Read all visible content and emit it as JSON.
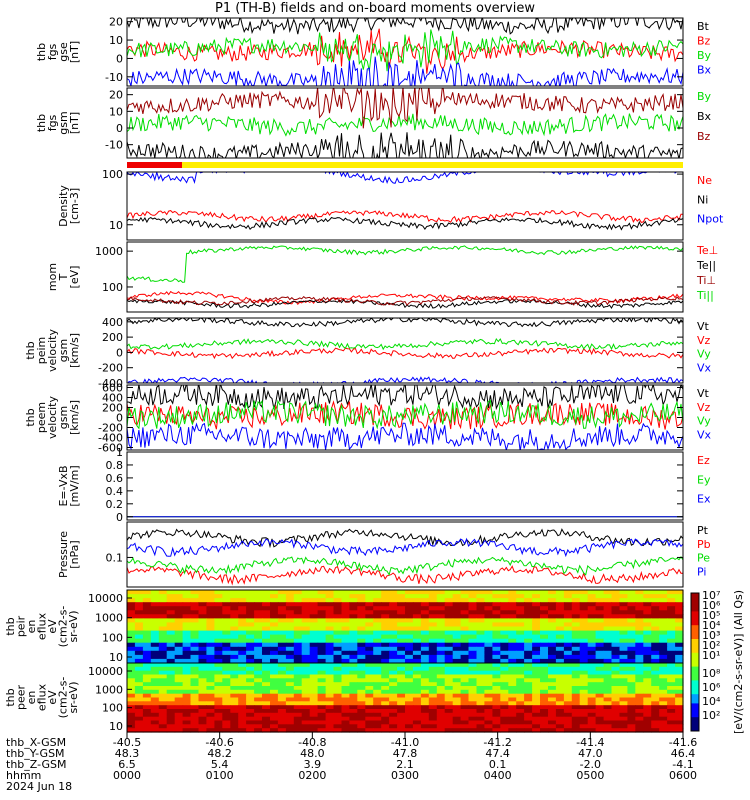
{
  "title": "P1 (TH-B) fields and on-board moments overview",
  "chart_data": {
    "type": "line",
    "panels": [
      {
        "id": "fgs-gse",
        "ylabel": [
          "thb",
          "fgs",
          "gse",
          "[nT]"
        ],
        "ylim": [
          -15,
          22
        ],
        "yticks": [
          20,
          10,
          0,
          -10
        ],
        "series": [
          {
            "name": "Bt",
            "color": "#000000",
            "base": 19
          },
          {
            "name": "Bz",
            "color": "#ff0000",
            "base": 4
          },
          {
            "name": "By",
            "color": "#00dd00",
            "base": 6
          },
          {
            "name": "Bx",
            "color": "#0000ff",
            "base": -11
          }
        ]
      },
      {
        "id": "fgs-gsm",
        "ylabel": [
          "thb",
          "fgs",
          "gsm",
          "[nT]"
        ],
        "ylim": [
          -18,
          24
        ],
        "yticks": [
          20,
          10,
          0,
          -10
        ],
        "series": [
          {
            "name": "By",
            "color": "#00dd00",
            "base": 2
          },
          {
            "name": "Bx",
            "color": "#000000",
            "base": -14
          },
          {
            "name": "Bz",
            "color": "#990000",
            "base": 15
          }
        ]
      },
      {
        "id": "density",
        "ylabel": [
          "Density",
          "[cm-3]"
        ],
        "scale": "log",
        "ylim": [
          5,
          110
        ],
        "yticks": [
          100,
          10
        ],
        "series": [
          {
            "name": "Ne",
            "color": "#ff0000",
            "base": 15
          },
          {
            "name": "Ni",
            "color": "#000000",
            "base": 11
          },
          {
            "name": "Npot",
            "color": "#0000ff",
            "base": 90
          }
        ]
      },
      {
        "id": "temp",
        "ylabel": [
          "mom",
          "T",
          "[eV]"
        ],
        "scale": "log",
        "ylim": [
          20,
          1800
        ],
        "yticks": [
          1000,
          100
        ],
        "series": [
          {
            "name": "Te⊥",
            "color": "#ff0000",
            "base": 50
          },
          {
            "name": "Te||",
            "color": "#000000",
            "base": 35
          },
          {
            "name": "Ti⊥",
            "color": "#990000",
            "base": 42
          },
          {
            "name": "Ti||",
            "color": "#00dd00",
            "base": 1100
          }
        ]
      },
      {
        "id": "peim-vel",
        "ylabel": [
          "thb",
          "peim",
          "velocity",
          "gsm",
          "[km/s]"
        ],
        "ylim": [
          -400,
          450
        ],
        "yticks": [
          400,
          200,
          0,
          -200,
          -400
        ],
        "series": [
          {
            "name": "Vt",
            "color": "#000000",
            "base": 400
          },
          {
            "name": "Vz",
            "color": "#ff0000",
            "base": -10
          },
          {
            "name": "Vy",
            "color": "#00dd00",
            "base": 110
          },
          {
            "name": "Vx",
            "color": "#0000ff",
            "base": -390
          }
        ]
      },
      {
        "id": "peem-vel",
        "ylabel": [
          "thb",
          "peem",
          "velocity",
          "gsm",
          "[km/s]"
        ],
        "ylim": [
          -650,
          650
        ],
        "yticks": [
          600,
          400,
          200,
          0,
          -200,
          -400,
          -600
        ],
        "series": [
          {
            "name": "Vt",
            "color": "#000000",
            "base": 430
          },
          {
            "name": "Vz",
            "color": "#ff0000",
            "base": 40
          },
          {
            "name": "Vy",
            "color": "#00dd00",
            "base": 60
          },
          {
            "name": "Vx",
            "color": "#0000ff",
            "base": -390
          }
        ]
      },
      {
        "id": "efield",
        "ylabel": [
          "E=-VxB",
          "[mV/m]"
        ],
        "ylim": [
          -0.05,
          1.0
        ],
        "yticks": [
          1.0,
          0.8,
          0.6,
          0.4,
          0.2,
          0.0
        ],
        "series": [
          {
            "name": "Ez",
            "color": "#ff0000"
          },
          {
            "name": "Ey",
            "color": "#00dd00"
          },
          {
            "name": "Ex",
            "color": "#0000ff"
          }
        ]
      },
      {
        "id": "pressure",
        "ylabel": [
          "Pressure",
          "[nPa]"
        ],
        "scale": "log",
        "ylim": [
          0.04,
          0.3
        ],
        "yticks": [
          0.1
        ],
        "ytick_labels": [
          "0.1"
        ],
        "series": [
          {
            "name": "Pt",
            "color": "#000000",
            "base": 0.19
          },
          {
            "name": "Pb",
            "color": "#ff0000",
            "base": 0.06
          },
          {
            "name": "Pe",
            "color": "#00dd00",
            "base": 0.08
          },
          {
            "name": "Pi",
            "color": "#0000ff",
            "base": 0.14
          }
        ]
      }
    ],
    "spectrograms": [
      {
        "id": "peir",
        "ylabel": [
          "thb",
          "peir",
          "en",
          "eflux",
          "eV",
          "(cm2-s-",
          "sr-eV)"
        ],
        "yticks": [
          "10000",
          "1000",
          "100",
          "10"
        ]
      },
      {
        "id": "peer",
        "ylabel": [
          "thb",
          "peer",
          "en",
          "eflux",
          "eV",
          "(cm2-s-",
          "sr-eV)"
        ],
        "yticks": [
          "10000",
          "1000",
          "100",
          "10"
        ]
      }
    ],
    "colorbar": {
      "label": "[eV/(cm2-s-sr-eV)] (All Qs)",
      "ticks": [
        "10⁷",
        "10⁶",
        "10⁵",
        "10⁴",
        "10³",
        "10²",
        "10¹"
      ],
      "ticks_lower": [
        "10⁸",
        "10⁶",
        "10⁴",
        "10²"
      ]
    },
    "flag_bar": {
      "colors": [
        "#ee0000",
        "#ffee00"
      ]
    },
    "x_axis": {
      "rows": [
        {
          "label": "thb_X-GSM",
          "values": [
            "-40.5",
            "-40.6",
            "-40.8",
            "-41.0",
            "-41.2",
            "-41.4",
            "-41.6"
          ]
        },
        {
          "label": "thb_Y-GSM",
          "values": [
            "48.3",
            "48.2",
            "48.0",
            "47.8",
            "47.4",
            "47.0",
            "46.4"
          ]
        },
        {
          "label": "thb_Z-GSM",
          "values": [
            "6.5",
            "5.4",
            "3.9",
            "2.1",
            "0.1",
            "-2.0",
            "-4.1"
          ]
        },
        {
          "label": "hhmm",
          "values": [
            "0000",
            "0100",
            "0200",
            "0300",
            "0400",
            "0500",
            "0600"
          ]
        }
      ],
      "date": "2024 Jun 18"
    }
  }
}
